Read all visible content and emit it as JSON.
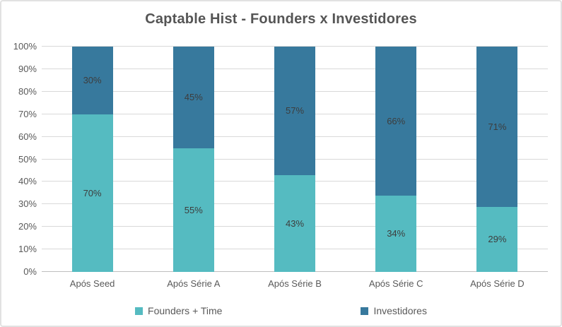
{
  "chart_data": {
    "type": "bar",
    "stacked": true,
    "title": "Captable Hist - Founders x Investidores",
    "categories": [
      "Após Seed",
      "Após Série A",
      "Após Série B",
      "Após Série C",
      "Após Série D"
    ],
    "series": [
      {
        "name": "Founders + Time",
        "color": "#55BBC1",
        "values": [
          70,
          55,
          43,
          34,
          29
        ]
      },
      {
        "name": "Investidores",
        "color": "#37799D",
        "values": [
          30,
          45,
          57,
          66,
          71
        ]
      }
    ],
    "xlabel": "",
    "ylabel": "",
    "ylim": [
      0,
      100
    ],
    "ytick_step": 10,
    "ytick_suffix": "%",
    "data_label_suffix": "%",
    "grid": "horizontal",
    "legend_position": "bottom"
  },
  "style": {
    "founders_color": "#55BBC1",
    "investors_color": "#37799D",
    "title_color": "#555555",
    "axis_text_color": "#595959",
    "data_label_color": "#3D3D3D",
    "gridline_color": "#D9D9D9",
    "axis_line_color": "#BFBFBF",
    "border_color": "#E2E2E2",
    "background": "#FFFFFF"
  }
}
